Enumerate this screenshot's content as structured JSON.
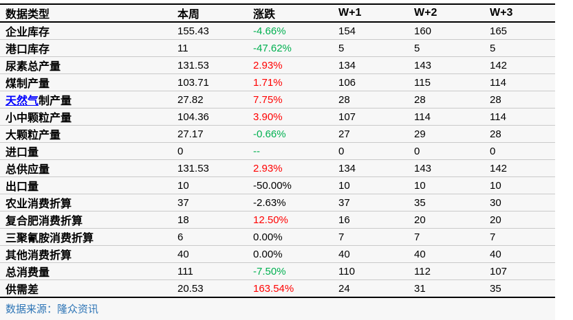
{
  "chart_data": {
    "type": "table",
    "title": "",
    "columns": [
      "数据类型",
      "本周",
      "涨跌",
      "W+1",
      "W+2",
      "W+3"
    ],
    "rows": [
      {
        "cells": [
          "企业库存",
          "155.43",
          "-4.66%",
          "154",
          "160",
          "165"
        ],
        "change_color": "green"
      },
      {
        "cells": [
          "港口库存",
          "11",
          "-47.62%",
          "5",
          "5",
          "5"
        ],
        "change_color": "green"
      },
      {
        "cells": [
          "尿素总产量",
          "131.53",
          "2.93%",
          "134",
          "143",
          "142"
        ],
        "change_color": "red"
      },
      {
        "cells": [
          "煤制产量",
          "103.71",
          "1.71%",
          "106",
          "115",
          "114"
        ],
        "change_color": "red"
      },
      {
        "cells": [
          "天然气制产量",
          "27.82",
          "7.75%",
          "28",
          "28",
          "28"
        ],
        "change_color": "red",
        "label_link_text": "天然气"
      },
      {
        "cells": [
          "小中颗粒产量",
          "104.36",
          "3.90%",
          "107",
          "114",
          "114"
        ],
        "change_color": "red"
      },
      {
        "cells": [
          "大颗粒产量",
          "27.17",
          "-0.66%",
          "27",
          "29",
          "28"
        ],
        "change_color": "green"
      },
      {
        "cells": [
          "进口量",
          "0",
          "--",
          "0",
          "0",
          "0"
        ],
        "change_color": "green"
      },
      {
        "cells": [
          "总供应量",
          "131.53",
          "2.93%",
          "134",
          "143",
          "142"
        ],
        "change_color": "red"
      },
      {
        "cells": [
          "出口量",
          "10",
          "-50.00%",
          "10",
          "10",
          "10"
        ],
        "change_color": "black"
      },
      {
        "cells": [
          "农业消费折算",
          "37",
          "-2.63%",
          "37",
          "35",
          "30"
        ],
        "change_color": "black"
      },
      {
        "cells": [
          "复合肥消费折算",
          "18",
          "12.50%",
          "16",
          "20",
          "20"
        ],
        "change_color": "red"
      },
      {
        "cells": [
          "三聚氰胺消费折算",
          "6",
          "0.00%",
          "7",
          "7",
          "7"
        ],
        "change_color": "black"
      },
      {
        "cells": [
          "其他消费折算",
          "40",
          "0.00%",
          "40",
          "40",
          "40"
        ],
        "change_color": "black"
      },
      {
        "cells": [
          "总消费量",
          "111",
          "-7.50%",
          "110",
          "112",
          "107"
        ],
        "change_color": "green"
      },
      {
        "cells": [
          "供需差",
          "20.53",
          "163.54%",
          "24",
          "31",
          "35"
        ],
        "change_color": "red"
      }
    ],
    "source_note": "数据来源：隆众资讯"
  },
  "colors": {
    "rise_red": "#ff0000",
    "fall_green": "#00b050",
    "link_blue": "#0000ff",
    "source_blue": "#2e75b6"
  }
}
